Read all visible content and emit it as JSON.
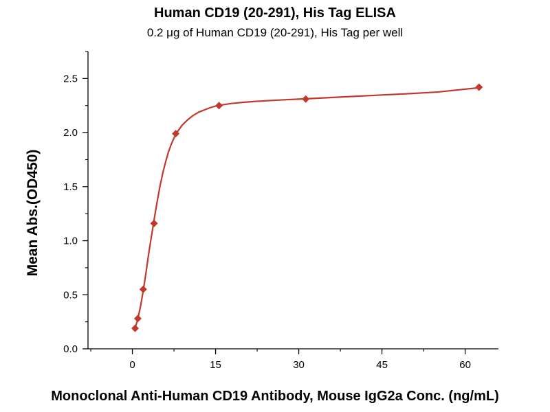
{
  "chart_data": {
    "type": "scatter",
    "title": "Human CD19 (20-291), His Tag ELISA",
    "subtitle": "0.2 μg of Human CD19 (20-291), His Tag per well",
    "xlabel": "Monoclonal Anti-Human CD19 Antibody, Mouse IgG2a Conc. (ng/mL)",
    "ylabel": "Mean Abs.(OD450)",
    "xlim": [
      -8,
      66
    ],
    "ylim": [
      0,
      2.75
    ],
    "xticks": [
      0,
      15,
      30,
      45,
      60
    ],
    "xtick_labels": [
      "0",
      "15",
      "30",
      "45",
      "60"
    ],
    "yticks": [
      0.0,
      0.5,
      1.0,
      1.5,
      2.0,
      2.5
    ],
    "ytick_labels": [
      "0.0",
      "0.5",
      "1.0",
      "1.5",
      "2.0",
      "2.5"
    ],
    "series": [
      {
        "name": "OD450",
        "color": "#c0392b",
        "marker": "diamond",
        "x": [
          0.49,
          0.98,
          1.95,
          3.91,
          7.81,
          15.63,
          31.25,
          62.5
        ],
        "y": [
          0.19,
          0.28,
          0.55,
          1.16,
          1.99,
          2.25,
          2.31,
          2.42
        ]
      }
    ],
    "fit_curve": {
      "name": "4PL fit",
      "color": "#c0392b",
      "x": [
        0.49,
        1,
        1.5,
        2,
        2.5,
        3,
        3.5,
        4,
        4.5,
        5,
        5.5,
        6,
        6.5,
        7,
        7.5,
        8,
        9,
        10,
        11,
        12,
        13,
        14,
        15,
        16,
        18,
        20,
        22,
        25,
        28,
        31,
        35,
        40,
        45,
        50,
        55,
        62.5
      ],
      "y": [
        0.19,
        0.28,
        0.4,
        0.55,
        0.72,
        0.9,
        1.06,
        1.22,
        1.37,
        1.51,
        1.63,
        1.73,
        1.82,
        1.89,
        1.95,
        2.0,
        2.07,
        2.12,
        2.16,
        2.19,
        2.21,
        2.23,
        2.245,
        2.255,
        2.27,
        2.28,
        2.288,
        2.297,
        2.305,
        2.312,
        2.322,
        2.335,
        2.348,
        2.36,
        2.375,
        2.415
      ]
    }
  }
}
